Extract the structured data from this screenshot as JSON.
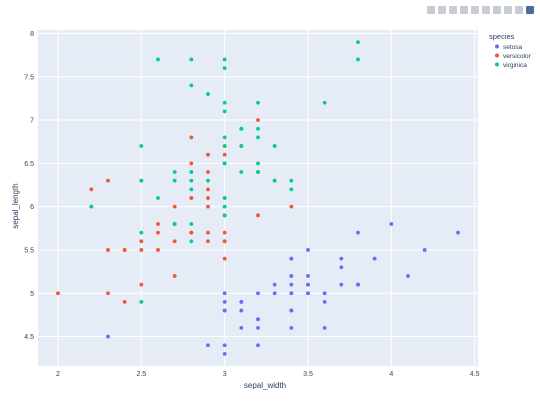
{
  "modebar": {
    "icons": [
      "camera-icon",
      "zoom-icon",
      "pan-icon",
      "box-select-icon",
      "lasso-icon",
      "zoom-in-icon",
      "zoom-out-icon",
      "autoscale-icon",
      "home-icon",
      "plotly-logo-icon"
    ]
  },
  "chart_data": {
    "type": "scatter",
    "title": "",
    "xlabel": "sepal_width",
    "ylabel": "sepal_length",
    "xlim": [
      1.88,
      4.52
    ],
    "ylim": [
      4.16,
      8.04
    ],
    "xticks": [
      2,
      2.5,
      3,
      3.5,
      4,
      4.5
    ],
    "yticks": [
      4.5,
      5,
      5.5,
      6,
      6.5,
      7,
      7.5,
      8
    ],
    "grid": true,
    "plot_bgcolor": "#E5ECF6",
    "legend": {
      "title": "species",
      "placement": "top-right"
    },
    "series": [
      {
        "name": "setosa",
        "color": "#636EFA",
        "points": [
          [
            3.5,
            5.1
          ],
          [
            3.0,
            4.9
          ],
          [
            3.2,
            4.7
          ],
          [
            3.1,
            4.6
          ],
          [
            3.6,
            5.0
          ],
          [
            3.9,
            5.4
          ],
          [
            3.4,
            4.6
          ],
          [
            3.4,
            5.0
          ],
          [
            2.9,
            4.4
          ],
          [
            3.1,
            4.9
          ],
          [
            3.7,
            5.4
          ],
          [
            3.4,
            4.8
          ],
          [
            3.0,
            4.8
          ],
          [
            3.0,
            4.3
          ],
          [
            4.0,
            5.8
          ],
          [
            4.4,
            5.7
          ],
          [
            3.9,
            5.4
          ],
          [
            3.5,
            5.1
          ],
          [
            3.8,
            5.7
          ],
          [
            3.8,
            5.1
          ],
          [
            3.4,
            5.4
          ],
          [
            3.7,
            5.1
          ],
          [
            3.6,
            4.6
          ],
          [
            3.3,
            5.1
          ],
          [
            3.4,
            4.8
          ],
          [
            3.0,
            5.0
          ],
          [
            3.4,
            5.0
          ],
          [
            3.5,
            5.2
          ],
          [
            3.4,
            5.2
          ],
          [
            3.2,
            4.7
          ],
          [
            3.1,
            4.8
          ],
          [
            3.4,
            5.4
          ],
          [
            4.1,
            5.2
          ],
          [
            4.2,
            5.5
          ],
          [
            3.1,
            4.9
          ],
          [
            3.2,
            5.0
          ],
          [
            3.5,
            5.5
          ],
          [
            3.6,
            4.9
          ],
          [
            3.0,
            4.4
          ],
          [
            3.4,
            5.1
          ],
          [
            3.5,
            5.0
          ],
          [
            2.3,
            4.5
          ],
          [
            3.2,
            4.4
          ],
          [
            3.5,
            5.0
          ],
          [
            3.8,
            5.1
          ],
          [
            3.0,
            4.8
          ],
          [
            3.8,
            5.1
          ],
          [
            3.2,
            4.6
          ],
          [
            3.7,
            5.3
          ],
          [
            3.3,
            5.0
          ]
        ]
      },
      {
        "name": "versicolor",
        "color": "#EF553B",
        "points": [
          [
            3.2,
            7.0
          ],
          [
            3.2,
            6.4
          ],
          [
            3.1,
            6.9
          ],
          [
            2.3,
            5.5
          ],
          [
            2.8,
            6.5
          ],
          [
            2.8,
            5.7
          ],
          [
            3.3,
            6.3
          ],
          [
            2.4,
            4.9
          ],
          [
            2.9,
            6.6
          ],
          [
            2.7,
            5.2
          ],
          [
            2.0,
            5.0
          ],
          [
            3.0,
            5.9
          ],
          [
            2.2,
            6.0
          ],
          [
            2.9,
            6.1
          ],
          [
            2.9,
            5.6
          ],
          [
            3.1,
            6.7
          ],
          [
            3.0,
            5.6
          ],
          [
            2.7,
            5.8
          ],
          [
            2.2,
            6.2
          ],
          [
            2.5,
            5.6
          ],
          [
            3.2,
            5.9
          ],
          [
            2.8,
            6.1
          ],
          [
            2.5,
            6.3
          ],
          [
            2.8,
            6.1
          ],
          [
            2.9,
            6.4
          ],
          [
            3.0,
            6.6
          ],
          [
            2.8,
            6.8
          ],
          [
            3.0,
            6.7
          ],
          [
            2.9,
            6.0
          ],
          [
            2.6,
            5.7
          ],
          [
            2.4,
            5.5
          ],
          [
            2.4,
            5.5
          ],
          [
            2.7,
            5.8
          ],
          [
            2.7,
            6.0
          ],
          [
            3.0,
            5.4
          ],
          [
            3.4,
            6.0
          ],
          [
            3.1,
            6.7
          ],
          [
            2.3,
            6.3
          ],
          [
            3.0,
            5.6
          ],
          [
            2.5,
            5.5
          ],
          [
            2.6,
            5.5
          ],
          [
            3.0,
            6.1
          ],
          [
            2.6,
            5.8
          ],
          [
            2.3,
            5.0
          ],
          [
            2.7,
            5.6
          ],
          [
            3.0,
            5.7
          ],
          [
            2.9,
            5.7
          ],
          [
            2.9,
            6.2
          ],
          [
            2.5,
            5.1
          ],
          [
            2.8,
            5.7
          ]
        ]
      },
      {
        "name": "virginica",
        "color": "#00CC96",
        "points": [
          [
            3.3,
            6.3
          ],
          [
            2.7,
            5.8
          ],
          [
            3.0,
            7.1
          ],
          [
            2.9,
            6.3
          ],
          [
            3.0,
            6.5
          ],
          [
            3.0,
            7.6
          ],
          [
            2.5,
            4.9
          ],
          [
            2.9,
            7.3
          ],
          [
            2.5,
            6.7
          ],
          [
            3.6,
            7.2
          ],
          [
            3.2,
            6.5
          ],
          [
            2.7,
            6.4
          ],
          [
            3.0,
            6.8
          ],
          [
            2.5,
            5.7
          ],
          [
            2.8,
            5.8
          ],
          [
            3.2,
            6.4
          ],
          [
            3.0,
            6.5
          ],
          [
            3.8,
            7.7
          ],
          [
            2.6,
            7.7
          ],
          [
            2.2,
            6.0
          ],
          [
            3.2,
            6.9
          ],
          [
            2.8,
            5.6
          ],
          [
            2.8,
            7.7
          ],
          [
            2.7,
            6.3
          ],
          [
            3.3,
            6.7
          ],
          [
            3.2,
            7.2
          ],
          [
            2.8,
            6.2
          ],
          [
            3.0,
            6.1
          ],
          [
            2.8,
            6.4
          ],
          [
            3.0,
            7.2
          ],
          [
            2.8,
            7.4
          ],
          [
            3.8,
            7.9
          ],
          [
            2.8,
            6.4
          ],
          [
            2.8,
            6.3
          ],
          [
            2.6,
            6.1
          ],
          [
            3.0,
            7.7
          ],
          [
            3.4,
            6.3
          ],
          [
            3.1,
            6.4
          ],
          [
            3.0,
            6.0
          ],
          [
            3.1,
            6.9
          ],
          [
            3.1,
            6.7
          ],
          [
            3.1,
            6.9
          ],
          [
            2.7,
            5.8
          ],
          [
            3.2,
            6.8
          ],
          [
            3.3,
            6.7
          ],
          [
            3.0,
            6.7
          ],
          [
            2.5,
            6.3
          ],
          [
            3.0,
            6.5
          ],
          [
            3.4,
            6.2
          ],
          [
            3.0,
            5.9
          ]
        ]
      }
    ]
  }
}
